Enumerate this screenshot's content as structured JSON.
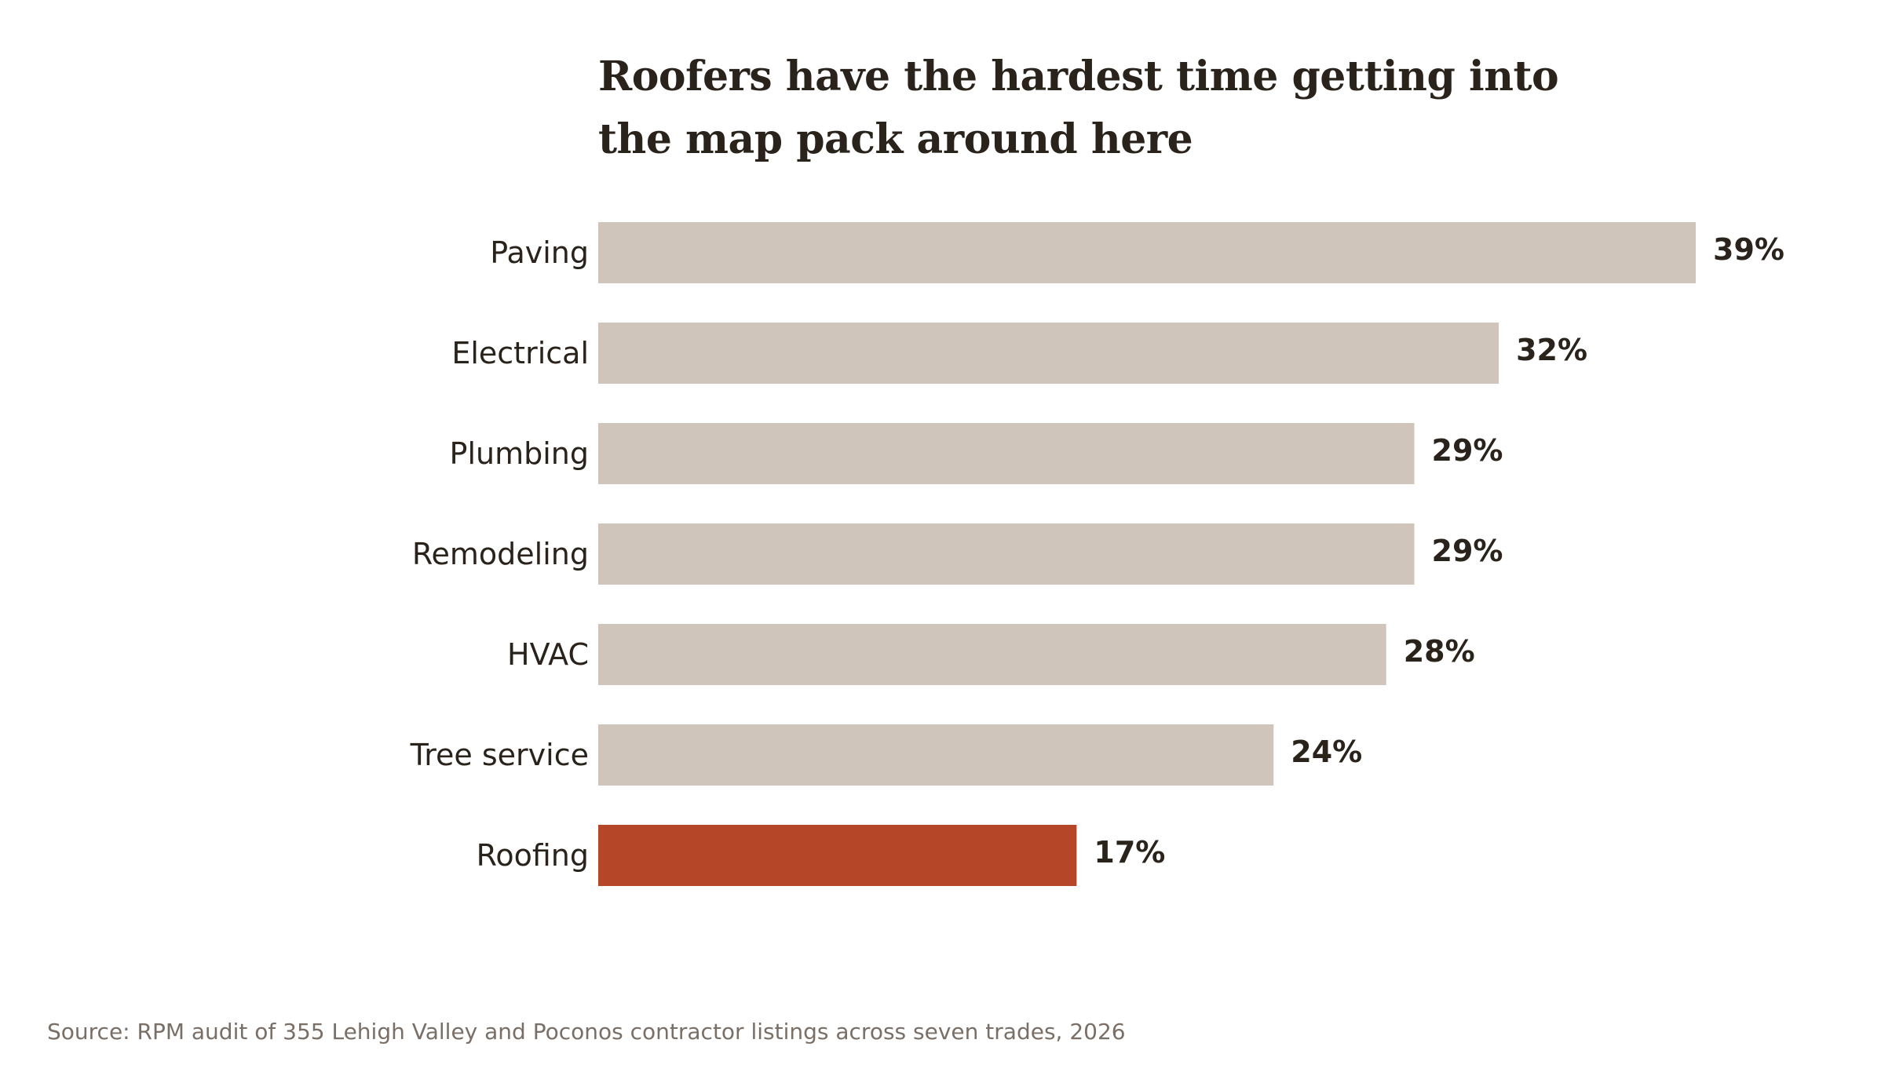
{
  "chart_data": {
    "type": "bar",
    "orientation": "horizontal",
    "title": "Roofers have the hardest time getting into the map pack around here",
    "categories": [
      "Paving",
      "Electrical",
      "Plumbing",
      "Remodeling",
      "HVAC",
      "Tree service",
      "Roofing"
    ],
    "values": [
      39,
      32,
      29,
      29,
      28,
      24,
      17
    ],
    "value_labels": [
      "39%",
      "32%",
      "29%",
      "29%",
      "28%",
      "24%",
      "17%"
    ],
    "unit": "%",
    "xlim": [
      0,
      39
    ],
    "grid": false,
    "legend": "none",
    "highlight_category": "Roofing",
    "colors": {
      "default_bar": "#d0c5ba",
      "highlight_bar": "#b64628",
      "text": "#2a231c"
    }
  },
  "footer": {
    "source": "Source: RPM audit of 355 Lehigh Valley and Poconos contractor listings across seven trades, 2026"
  }
}
